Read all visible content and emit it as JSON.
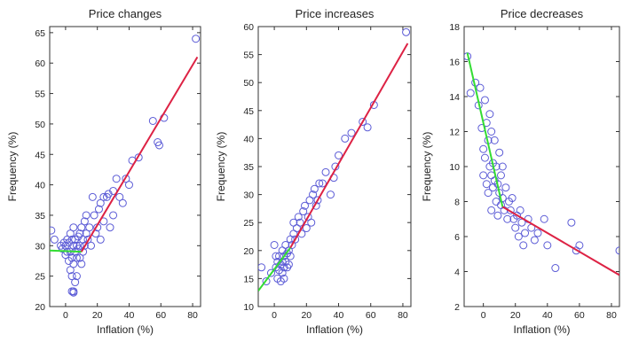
{
  "colors": {
    "points": "#5b5bd6",
    "fit_left": "#33dd33",
    "fit_right": "#dd2244",
    "axes": "#333333"
  },
  "chart_data": [
    {
      "type": "scatter",
      "title": "Price changes",
      "xlabel": "Inflation (%)",
      "ylabel": "Frequency (%)",
      "xlim": [
        -10,
        85
      ],
      "ylim": [
        20,
        66
      ],
      "xticks": [
        0,
        20,
        40,
        60,
        80
      ],
      "yticks": [
        20,
        25,
        30,
        35,
        40,
        45,
        50,
        55,
        60,
        65
      ],
      "fit_lines": [
        {
          "color": "green",
          "points": [
            [
              -10,
              29.2
            ],
            [
              10,
              29.0
            ]
          ]
        },
        {
          "color": "red",
          "points": [
            [
              10,
              29.0
            ],
            [
              83,
              61.0
            ]
          ]
        }
      ],
      "points": [
        [
          -9,
          32.5
        ],
        [
          -7,
          31
        ],
        [
          -3,
          30
        ],
        [
          -2,
          29.5
        ],
        [
          -1,
          30.5
        ],
        [
          0,
          28.5
        ],
        [
          0,
          30
        ],
        [
          1,
          31
        ],
        [
          1,
          29
        ],
        [
          2,
          27.5
        ],
        [
          2,
          30.5
        ],
        [
          3,
          32
        ],
        [
          3,
          29
        ],
        [
          3,
          26
        ],
        [
          4,
          28
        ],
        [
          4,
          31
        ],
        [
          4,
          25
        ],
        [
          4,
          22.5
        ],
        [
          5,
          22.3
        ],
        [
          5,
          22.5
        ],
        [
          5,
          27
        ],
        [
          5,
          30
        ],
        [
          5,
          33
        ],
        [
          6,
          29
        ],
        [
          6,
          24
        ],
        [
          6,
          31
        ],
        [
          7,
          28
        ],
        [
          7,
          30
        ],
        [
          7,
          25
        ],
        [
          8,
          29.5
        ],
        [
          8,
          31.5
        ],
        [
          9,
          30
        ],
        [
          9,
          28
        ],
        [
          9,
          32
        ],
        [
          10,
          27
        ],
        [
          10,
          33
        ],
        [
          11,
          31
        ],
        [
          11,
          29
        ],
        [
          12,
          30
        ],
        [
          12,
          34
        ],
        [
          13,
          32
        ],
        [
          13,
          35
        ],
        [
          14,
          31
        ],
        [
          15,
          33
        ],
        [
          16,
          30
        ],
        [
          17,
          38
        ],
        [
          18,
          35
        ],
        [
          19,
          32
        ],
        [
          20,
          33
        ],
        [
          21,
          36
        ],
        [
          22,
          37
        ],
        [
          22,
          31
        ],
        [
          24,
          38
        ],
        [
          24,
          34
        ],
        [
          26,
          38
        ],
        [
          27,
          38.5
        ],
        [
          28,
          33
        ],
        [
          30,
          39
        ],
        [
          30,
          35
        ],
        [
          32,
          41
        ],
        [
          34,
          38
        ],
        [
          36,
          37
        ],
        [
          38,
          41
        ],
        [
          40,
          40
        ],
        [
          42,
          44
        ],
        [
          46,
          44.5
        ],
        [
          55,
          50.5
        ],
        [
          58,
          47
        ],
        [
          59,
          46.5
        ],
        [
          62,
          51
        ],
        [
          82,
          64
        ]
      ]
    },
    {
      "type": "scatter",
      "title": "Price increases",
      "xlabel": "Inflation (%)",
      "ylabel": "Frequency (%)",
      "xlim": [
        -10,
        85
      ],
      "ylim": [
        10,
        60
      ],
      "xticks": [
        0,
        20,
        40,
        60,
        80
      ],
      "yticks": [
        10,
        15,
        20,
        25,
        30,
        35,
        40,
        45,
        50,
        55,
        60
      ],
      "fit_lines": [
        {
          "color": "green",
          "points": [
            [
              -10,
              12.8
            ],
            [
              10,
              20.5
            ]
          ]
        },
        {
          "color": "red",
          "points": [
            [
              10,
              20.5
            ],
            [
              83,
              57.0
            ]
          ]
        }
      ],
      "points": [
        [
          -8,
          17
        ],
        [
          -5,
          14.5
        ],
        [
          -2,
          16
        ],
        [
          0,
          21
        ],
        [
          1,
          19
        ],
        [
          1,
          17
        ],
        [
          2,
          15
        ],
        [
          2,
          18
        ],
        [
          3,
          16.5
        ],
        [
          3,
          19
        ],
        [
          4,
          17.5
        ],
        [
          4,
          14.5
        ],
        [
          5,
          18
        ],
        [
          5,
          16
        ],
        [
          5,
          20
        ],
        [
          6,
          17
        ],
        [
          6,
          19
        ],
        [
          6,
          15
        ],
        [
          7,
          18
        ],
        [
          7,
          21
        ],
        [
          8,
          17
        ],
        [
          8,
          19.5
        ],
        [
          9,
          20
        ],
        [
          9,
          17.5
        ],
        [
          10,
          19
        ],
        [
          10,
          22
        ],
        [
          11,
          21
        ],
        [
          12,
          23
        ],
        [
          12,
          25
        ],
        [
          13,
          22
        ],
        [
          14,
          24
        ],
        [
          15,
          26
        ],
        [
          16,
          25
        ],
        [
          17,
          23
        ],
        [
          18,
          27
        ],
        [
          19,
          28
        ],
        [
          20,
          24
        ],
        [
          21,
          26
        ],
        [
          22,
          29
        ],
        [
          23,
          25
        ],
        [
          24,
          30
        ],
        [
          25,
          31
        ],
        [
          26,
          28
        ],
        [
          27,
          29
        ],
        [
          28,
          32
        ],
        [
          30,
          32
        ],
        [
          32,
          34
        ],
        [
          35,
          30
        ],
        [
          37,
          33
        ],
        [
          38,
          35
        ],
        [
          40,
          37
        ],
        [
          44,
          40
        ],
        [
          48,
          41
        ],
        [
          55,
          43
        ],
        [
          58,
          42
        ],
        [
          62,
          46
        ],
        [
          82,
          59
        ]
      ]
    },
    {
      "type": "scatter",
      "title": "Price decreases",
      "xlabel": "Inflation (%)",
      "ylabel": "Frequency (%)",
      "xlim": [
        -12,
        85
      ],
      "ylim": [
        2,
        18
      ],
      "xticks": [
        0,
        20,
        40,
        60,
        80
      ],
      "yticks": [
        2,
        4,
        6,
        8,
        10,
        12,
        14,
        16,
        18
      ],
      "fit_lines": [
        {
          "color": "green",
          "points": [
            [
              -10,
              16.5
            ],
            [
              12,
              7.7
            ]
          ]
        },
        {
          "color": "red",
          "points": [
            [
              12,
              7.7
            ],
            [
              85,
              3.8
            ]
          ]
        }
      ],
      "points": [
        [
          -10,
          16.3
        ],
        [
          -8,
          14.2
        ],
        [
          -5,
          14.8
        ],
        [
          -3,
          13.5
        ],
        [
          -2,
          14.5
        ],
        [
          -1,
          12.2
        ],
        [
          0,
          11
        ],
        [
          0,
          9.5
        ],
        [
          1,
          10.5
        ],
        [
          1,
          13.8
        ],
        [
          2,
          12.5
        ],
        [
          2,
          9
        ],
        [
          3,
          11.5
        ],
        [
          3,
          8.5
        ],
        [
          4,
          10
        ],
        [
          4,
          13
        ],
        [
          5,
          9.5
        ],
        [
          5,
          12
        ],
        [
          5,
          7.5
        ],
        [
          6,
          10.2
        ],
        [
          6,
          8.8
        ],
        [
          7,
          9.2
        ],
        [
          7,
          11.5
        ],
        [
          8,
          8
        ],
        [
          8,
          10
        ],
        [
          9,
          9
        ],
        [
          9,
          7.2
        ],
        [
          10,
          8.5
        ],
        [
          10,
          10.8
        ],
        [
          11,
          9.5
        ],
        [
          11,
          7.8
        ],
        [
          12,
          8.2
        ],
        [
          12,
          10
        ],
        [
          13,
          7.5
        ],
        [
          14,
          8.8
        ],
        [
          15,
          7
        ],
        [
          16,
          8
        ],
        [
          17,
          7.5
        ],
        [
          18,
          8.2
        ],
        [
          19,
          7
        ],
        [
          20,
          6.5
        ],
        [
          21,
          7.2
        ],
        [
          22,
          6
        ],
        [
          23,
          7.5
        ],
        [
          24,
          6.8
        ],
        [
          25,
          5.5
        ],
        [
          26,
          6.2
        ],
        [
          28,
          7
        ],
        [
          30,
          6.5
        ],
        [
          32,
          5.8
        ],
        [
          34,
          6.2
        ],
        [
          38,
          7
        ],
        [
          40,
          5.5
        ],
        [
          45,
          4.2
        ],
        [
          55,
          6.8
        ],
        [
          58,
          5.2
        ],
        [
          60,
          5.5
        ],
        [
          85,
          5.2
        ]
      ]
    }
  ]
}
